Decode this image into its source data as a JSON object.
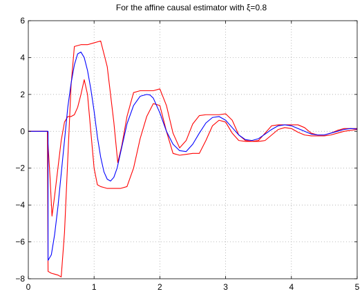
{
  "chart_data": {
    "type": "line",
    "title": "For the affine causal estimator with ξ=0.8",
    "xlabel": "",
    "ylabel": "",
    "xlim": [
      0,
      5
    ],
    "ylim": [
      -8,
      6
    ],
    "xticks": [
      0,
      1,
      2,
      3,
      4,
      5
    ],
    "yticks": [
      -8,
      -6,
      -4,
      -2,
      0,
      2,
      4,
      6
    ],
    "xtick_labels": [
      "0",
      "1",
      "2",
      "3",
      "4",
      "5"
    ],
    "ytick_labels": [
      "−8",
      "−6",
      "−4",
      "−2",
      "0",
      "2",
      "4",
      "6"
    ],
    "grid": true,
    "series": [
      {
        "color": "#ff0000",
        "x": [
          0,
          0.28,
          0.29,
          0.3,
          0.35,
          0.4,
          0.45,
          0.5,
          0.55,
          0.6,
          0.65,
          0.7,
          0.8,
          0.9,
          1.0,
          1.1,
          1.2,
          1.3,
          1.36,
          1.42,
          1.5,
          1.6,
          1.7,
          1.8,
          1.9,
          2.0,
          2.1,
          2.2,
          2.3,
          2.4,
          2.5,
          2.6,
          2.7,
          2.8,
          2.9,
          3.0,
          3.1,
          3.2,
          3.3,
          3.4,
          3.5,
          3.6,
          3.7,
          3.8,
          3.9,
          4.0,
          4.1,
          4.2,
          4.3,
          4.4,
          4.5,
          4.6,
          4.7,
          4.8,
          4.9,
          5.0
        ],
        "y": [
          0,
          0,
          0,
          -7.6,
          -7.7,
          -7.75,
          -7.8,
          -7.9,
          -5.5,
          -1.5,
          2.5,
          4.6,
          4.7,
          4.7,
          4.8,
          4.9,
          3.5,
          0.5,
          -1.7,
          -0.8,
          0.8,
          2.1,
          2.2,
          2.2,
          2.2,
          2.3,
          1.4,
          -0.1,
          -0.9,
          -0.5,
          0.4,
          0.85,
          0.9,
          0.9,
          0.9,
          0.95,
          0.6,
          -0.2,
          -0.5,
          -0.55,
          -0.5,
          -0.1,
          0.3,
          0.35,
          0.35,
          0.35,
          0.35,
          0.2,
          -0.1,
          -0.2,
          -0.2,
          -0.1,
          0.05,
          0.15,
          0.15,
          0.15
        ]
      },
      {
        "color": "#ff0000",
        "x": [
          0,
          0.28,
          0.29,
          0.3,
          0.33,
          0.36,
          0.4,
          0.45,
          0.5,
          0.55,
          0.6,
          0.65,
          0.7,
          0.75,
          0.8,
          0.85,
          0.9,
          0.95,
          1.0,
          1.05,
          1.1,
          1.15,
          1.2,
          1.3,
          1.4,
          1.5,
          1.6,
          1.7,
          1.8,
          1.9,
          2.0,
          2.1,
          2.2,
          2.3,
          2.4,
          2.5,
          2.6,
          2.7,
          2.8,
          2.9,
          3.0,
          3.1,
          3.2,
          3.3,
          3.4,
          3.5,
          3.6,
          3.7,
          3.8,
          3.9,
          4.0,
          4.1,
          4.2,
          4.3,
          4.4,
          4.5,
          4.6,
          4.7,
          4.8,
          4.9,
          5.0
        ],
        "y": [
          0,
          0,
          0,
          -0.7,
          -2.5,
          -4.6,
          -3.5,
          -2.0,
          -0.5,
          0.5,
          0.8,
          0.8,
          0.9,
          1.3,
          2.0,
          2.8,
          2.0,
          0.0,
          -2.0,
          -2.9,
          -3.0,
          -3.05,
          -3.1,
          -3.1,
          -3.1,
          -3.0,
          -2.0,
          -0.4,
          0.8,
          1.5,
          1.4,
          0.0,
          -1.2,
          -1.3,
          -1.25,
          -1.2,
          -1.2,
          -0.5,
          0.3,
          0.6,
          0.5,
          -0.1,
          -0.5,
          -0.55,
          -0.55,
          -0.55,
          -0.5,
          -0.2,
          0.1,
          0.2,
          0.15,
          -0.05,
          -0.2,
          -0.25,
          -0.25,
          -0.25,
          -0.2,
          -0.1,
          0.0,
          0.05,
          0.1
        ]
      },
      {
        "color": "#0000ff",
        "x": [
          0,
          0.3,
          0.3001,
          0.35,
          0.4,
          0.45,
          0.5,
          0.55,
          0.6,
          0.65,
          0.7,
          0.75,
          0.8,
          0.85,
          0.9,
          0.95,
          1.0,
          1.05,
          1.1,
          1.15,
          1.2,
          1.25,
          1.3,
          1.35,
          1.4,
          1.45,
          1.5,
          1.6,
          1.7,
          1.8,
          1.85,
          1.9,
          2.0,
          2.1,
          2.2,
          2.3,
          2.4,
          2.5,
          2.6,
          2.7,
          2.8,
          2.9,
          3.0,
          3.1,
          3.2,
          3.3,
          3.4,
          3.5,
          3.6,
          3.7,
          3.8,
          3.9,
          4.0,
          4.1,
          4.2,
          4.3,
          4.4,
          4.5,
          4.6,
          4.7,
          4.8,
          4.9,
          5.0
        ],
        "y": [
          0,
          0,
          -7.0,
          -6.7,
          -5.6,
          -4.1,
          -2.3,
          -0.5,
          1.3,
          2.6,
          3.6,
          4.2,
          4.3,
          4.0,
          3.3,
          2.3,
          1.1,
          -0.3,
          -1.4,
          -2.2,
          -2.6,
          -2.7,
          -2.5,
          -2.0,
          -1.2,
          -0.4,
          0.4,
          1.4,
          1.9,
          2.0,
          1.97,
          1.8,
          1.0,
          0.0,
          -0.7,
          -1.05,
          -1.1,
          -0.7,
          -0.1,
          0.45,
          0.75,
          0.8,
          0.6,
          0.2,
          -0.2,
          -0.45,
          -0.5,
          -0.4,
          -0.15,
          0.1,
          0.3,
          0.35,
          0.3,
          0.15,
          0.0,
          -0.15,
          -0.2,
          -0.2,
          -0.1,
          0.0,
          0.1,
          0.15,
          0.12
        ]
      }
    ]
  }
}
